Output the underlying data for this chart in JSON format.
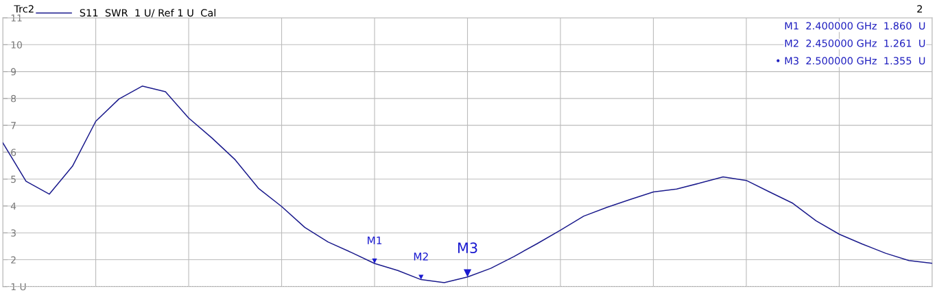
{
  "chart_data": {
    "type": "line",
    "categories": [
      null,
      null,
      null,
      null,
      null,
      null,
      null,
      null,
      null,
      null,
      null,
      null,
      null,
      null,
      null,
      null,
      null,
      null,
      null,
      null,
      null,
      null,
      null,
      null,
      null,
      null,
      null,
      null,
      null,
      null,
      null,
      null,
      null,
      null,
      null,
      null,
      null,
      null,
      null,
      null,
      null
    ],
    "series": [
      {
        "name": "S11  SWR  1 U/ Ref 1 U  Cal",
        "color": "#1a1a8c",
        "values": [
          6.35,
          4.92,
          4.44,
          5.48,
          7.15,
          7.98,
          8.46,
          8.25,
          7.27,
          6.53,
          5.72,
          4.66,
          3.98,
          3.2,
          2.66,
          2.27,
          1.86,
          1.6,
          1.26,
          1.15,
          1.36,
          1.68,
          2.12,
          2.6,
          3.1,
          3.62,
          3.95,
          4.24,
          4.52,
          4.63,
          4.85,
          5.08,
          4.95,
          4.52,
          4.1,
          3.45,
          2.95,
          2.58,
          2.24,
          1.97,
          1.87
        ]
      }
    ],
    "ylim": [
      1,
      11
    ],
    "yticks": [
      {
        "value": 1,
        "label": "1 U"
      },
      2,
      3,
      4,
      5,
      6,
      7,
      8,
      9,
      10,
      11
    ],
    "tick_labels": "y",
    "grid": true,
    "legend": "top left",
    "marker": "none",
    "line_style": "solid",
    "ref_lines": [
      {
        "axis": "y",
        "value": 1,
        "color": "#333333",
        "line_style": "dotted"
      }
    ],
    "annotations": [
      "Trc2",
      "2",
      "M1  2.400000 GHz  1.860  U",
      "M2  2.450000 GHz  1.261  U",
      "• M3  2.500000 GHz  1.355  U",
      {
        "text": "M1",
        "y": 1.86
      },
      {
        "text": "M2",
        "y": 1.26
      },
      {
        "text": "M3",
        "y": 1.36
      }
    ]
  }
}
